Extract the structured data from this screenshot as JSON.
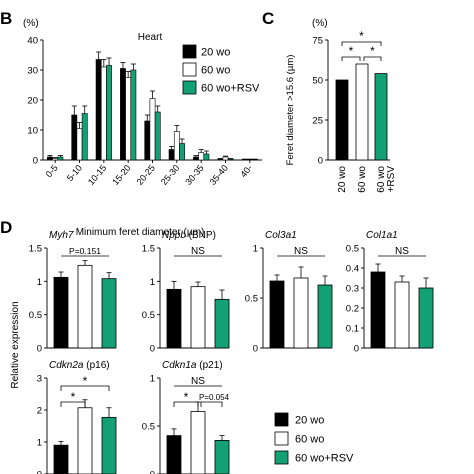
{
  "colors": {
    "black": "#000000",
    "white": "#ffffff",
    "green": "#13a075",
    "bar_stroke": "#000000"
  },
  "legend_items": [
    {
      "label": "20 wo",
      "color": "#000000"
    },
    {
      "label": "60 wo",
      "color": "#ffffff"
    },
    {
      "label": "60 wo+RSV",
      "color": "#13a075"
    }
  ],
  "panel_labels": {
    "B": "B",
    "C": "C",
    "D": "D"
  },
  "chart_data": [
    {
      "id": "B",
      "type": "bar",
      "title": "Heart",
      "ylabel": "(%)",
      "xlabel": "Minimum feret diameter (µm)",
      "ylim": [
        0,
        40
      ],
      "yticks": [
        0,
        10,
        20,
        30,
        40
      ],
      "categories": [
        "0-5",
        "5-10",
        "10-15",
        "15-20",
        "20-25",
        "25-30",
        "30-35",
        "35-40",
        "40-"
      ],
      "series": [
        {
          "name": "20 wo",
          "values": [
            1,
            15,
            33.5,
            30.5,
            13,
            3.5,
            1,
            0.3,
            0.2
          ],
          "errors": [
            0.5,
            3,
            2.5,
            2,
            2,
            1,
            0.5,
            0.2,
            0.1
          ]
        },
        {
          "name": "60 wo",
          "values": [
            0.5,
            10.5,
            31,
            27.5,
            20.5,
            9.5,
            2.5,
            1,
            0.2
          ],
          "errors": [
            0.3,
            2,
            2.5,
            2,
            2.5,
            2,
            1,
            0.3,
            0.1
          ]
        },
        {
          "name": "60 wo+RSV",
          "values": [
            1,
            15.5,
            31.5,
            30,
            16,
            5.5,
            2,
            0.3,
            0.2
          ],
          "errors": [
            0.5,
            2.5,
            2.5,
            2,
            2,
            1.5,
            1,
            0.2,
            0.1
          ]
        }
      ]
    },
    {
      "id": "C",
      "type": "bar",
      "ylabel": "Feret diameter >15.6 (µm)",
      "unit": "(%)",
      "ylim": [
        0,
        75
      ],
      "yticks": [
        0,
        25,
        50,
        75
      ],
      "categories": [
        "20 wo",
        "60 wo",
        "60 wo\n+RSV"
      ],
      "values": [
        50,
        60,
        54
      ],
      "annotations": [
        "*",
        "*",
        "*"
      ]
    },
    {
      "id": "D",
      "type": "bar",
      "ylabel": "Relative expression",
      "panels": [
        {
          "gene": "Myh7",
          "suffix": "",
          "values": [
            1.06,
            1.24,
            1.04
          ],
          "errors": [
            0.08,
            0.07,
            0.09
          ],
          "ylim": [
            0,
            1.5
          ],
          "yticks": [
            "0",
            "0.5",
            "1",
            "1.5"
          ],
          "stats": "P=0.151"
        },
        {
          "gene": "Nppb",
          "suffix": " (BNP)",
          "values": [
            0.88,
            0.92,
            0.73
          ],
          "errors": [
            0.12,
            0.07,
            0.14
          ],
          "ylim": [
            0,
            1.5
          ],
          "yticks": [
            "0",
            "0.5",
            "1",
            "1.5"
          ],
          "stats": "NS"
        },
        {
          "gene": "Col3a1",
          "suffix": "",
          "values": [
            0.67,
            0.7,
            0.63
          ],
          "errors": [
            0.06,
            0.11,
            0.09
          ],
          "ylim": [
            0,
            1
          ],
          "yticks": [
            "0",
            "0.5",
            "1"
          ],
          "stats": "NS"
        },
        {
          "gene": "Col1a1",
          "suffix": "",
          "values": [
            0.38,
            0.33,
            0.3
          ],
          "errors": [
            0.04,
            0.03,
            0.05
          ],
          "ylim": [
            0,
            0.5
          ],
          "yticks": [
            "0",
            "0.1",
            "0.2",
            "0.3",
            "0.4",
            "0.5"
          ],
          "stats": "NS"
        },
        {
          "gene": "Cdkn2a",
          "suffix": " (p16)",
          "values": [
            0.9,
            2.07,
            1.77
          ],
          "errors": [
            0.12,
            0.25,
            0.3
          ],
          "ylim": [
            0,
            3
          ],
          "yticks": [
            "0",
            "1",
            "2",
            "3"
          ],
          "stats": "*",
          "stats2": "*"
        },
        {
          "gene": "Cdkn1a",
          "suffix": " (p21)",
          "values": [
            0.4,
            0.65,
            0.35
          ],
          "errors": [
            0.07,
            0.1,
            0.05
          ],
          "ylim": [
            0,
            1
          ],
          "yticks": [
            "0",
            "0.5",
            "1"
          ],
          "stats": "NS",
          "stats2": "*",
          "stats3": "P=0.054"
        }
      ]
    }
  ]
}
